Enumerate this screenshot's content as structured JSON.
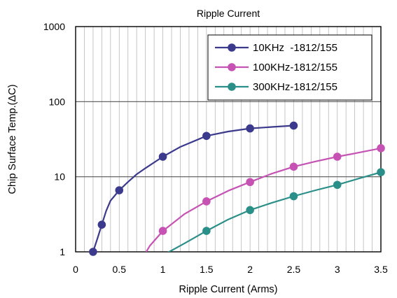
{
  "chart_data": {
    "type": "line",
    "title": "Ripple Current",
    "xlabel": "Ripple Current (Arms)",
    "ylabel": "Chip Surface Temp.(ΔC)",
    "xlim": [
      0,
      3.5
    ],
    "ylim": [
      1,
      1000
    ],
    "y_scale": "log",
    "x_ticks": [
      "0",
      "0.5",
      "1",
      "1.5",
      "2",
      "2.5",
      "3",
      "3.5"
    ],
    "y_ticks": [
      "1",
      "10",
      "100",
      "1000"
    ],
    "grid": true,
    "legend_position": "top-right",
    "series": [
      {
        "name": "10KHz  -1812/155",
        "color": "#3b3a8c",
        "points": [
          [
            0.2,
            1.0
          ],
          [
            0.3,
            2.3
          ],
          [
            0.5,
            6.6
          ],
          [
            1.0,
            18.5
          ],
          [
            1.5,
            35
          ],
          [
            2.0,
            44
          ],
          [
            2.5,
            48
          ]
        ],
        "curve": [
          [
            0.2,
            1.0
          ],
          [
            0.25,
            1.5
          ],
          [
            0.3,
            2.3
          ],
          [
            0.35,
            3.5
          ],
          [
            0.4,
            4.8
          ],
          [
            0.5,
            6.6
          ],
          [
            0.6,
            8.5
          ],
          [
            0.7,
            10.8
          ],
          [
            0.8,
            13
          ],
          [
            1.0,
            18.5
          ],
          [
            1.2,
            25
          ],
          [
            1.5,
            35
          ],
          [
            1.75,
            40
          ],
          [
            2.0,
            44
          ],
          [
            2.25,
            46
          ],
          [
            2.5,
            48
          ]
        ]
      },
      {
        "name": "100KHz-1812/155",
        "color": "#c653b3",
        "points": [
          [
            1.0,
            1.9
          ],
          [
            1.5,
            4.7
          ],
          [
            2.0,
            8.5
          ],
          [
            2.5,
            13.6
          ],
          [
            3.0,
            18.5
          ],
          [
            3.5,
            24
          ]
        ],
        "curve": [
          [
            0.76,
            0.8
          ],
          [
            0.85,
            1.2
          ],
          [
            1.0,
            1.9
          ],
          [
            1.25,
            3.2
          ],
          [
            1.5,
            4.7
          ],
          [
            1.75,
            6.5
          ],
          [
            2.0,
            8.5
          ],
          [
            2.25,
            11
          ],
          [
            2.5,
            13.6
          ],
          [
            2.75,
            16
          ],
          [
            3.0,
            18.5
          ],
          [
            3.25,
            21
          ],
          [
            3.5,
            24
          ]
        ]
      },
      {
        "name": "300KHz-1812/155",
        "color": "#2a8f88",
        "points": [
          [
            1.5,
            1.9
          ],
          [
            2.0,
            3.6
          ],
          [
            2.5,
            5.5
          ],
          [
            3.0,
            7.8
          ],
          [
            3.5,
            11.5
          ]
        ],
        "curve": [
          [
            1.0,
            0.9
          ],
          [
            1.25,
            1.3
          ],
          [
            1.5,
            1.9
          ],
          [
            1.75,
            2.7
          ],
          [
            2.0,
            3.6
          ],
          [
            2.25,
            4.5
          ],
          [
            2.5,
            5.5
          ],
          [
            2.75,
            6.6
          ],
          [
            3.0,
            7.8
          ],
          [
            3.25,
            9.5
          ],
          [
            3.5,
            11.5
          ]
        ]
      }
    ]
  }
}
